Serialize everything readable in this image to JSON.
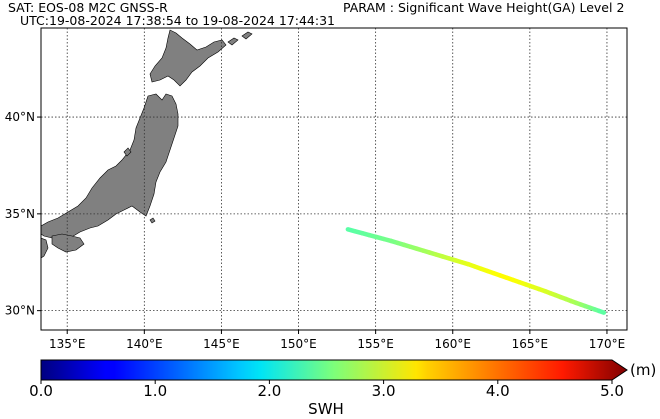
{
  "header": {
    "sat_line": "SAT: EOS-08 M2C GNSS-R",
    "utc_line": "UTC:19-08-2024 17:38:54 to 19-08-2024 17:44:31",
    "param_line": "PARAM : Significant Wave Height(GA) Level 2"
  },
  "map": {
    "lon_range": [
      133.3,
      171.3
    ],
    "lat_range": [
      29.0,
      44.6
    ],
    "lon_ticks": [
      {
        "value": 135,
        "label": "135°E"
      },
      {
        "value": 140,
        "label": "140°E"
      },
      {
        "value": 145,
        "label": "145°E"
      },
      {
        "value": 150,
        "label": "150°E"
      },
      {
        "value": 155,
        "label": "155°E"
      },
      {
        "value": 160,
        "label": "160°E"
      },
      {
        "value": 165,
        "label": "165°E"
      },
      {
        "value": 170,
        "label": "170°E"
      }
    ],
    "lat_ticks": [
      {
        "value": 30,
        "label": "30°N"
      },
      {
        "value": 35,
        "label": "35°N"
      },
      {
        "value": 40,
        "label": "40°N"
      }
    ],
    "grid": true,
    "land_color": "#808080",
    "land_edge_color": "#000000"
  },
  "track": {
    "points": [
      {
        "lon": 153.2,
        "lat": 34.2,
        "swh": 2.3
      },
      {
        "lon": 156.0,
        "lat": 33.6,
        "swh": 2.45
      },
      {
        "lon": 158.5,
        "lat": 33.0,
        "swh": 2.7
      },
      {
        "lon": 161.0,
        "lat": 32.4,
        "swh": 3.0
      },
      {
        "lon": 163.5,
        "lat": 31.7,
        "swh": 3.15
      },
      {
        "lon": 166.0,
        "lat": 31.0,
        "swh": 2.95
      },
      {
        "lon": 168.0,
        "lat": 30.4,
        "swh": 2.7
      },
      {
        "lon": 169.8,
        "lat": 29.9,
        "swh": 2.3
      }
    ]
  },
  "colorbar": {
    "min": 0.0,
    "max": 5.0,
    "ticks": [
      {
        "value": 0.0,
        "label": "0.0"
      },
      {
        "value": 1.0,
        "label": "1.0"
      },
      {
        "value": 2.0,
        "label": "2.0"
      },
      {
        "value": 3.0,
        "label": "3.0"
      },
      {
        "value": 4.0,
        "label": "4.0"
      },
      {
        "value": 5.0,
        "label": "5.0"
      }
    ],
    "unit": "(m)",
    "label": "SWH",
    "colormap": "jet"
  }
}
